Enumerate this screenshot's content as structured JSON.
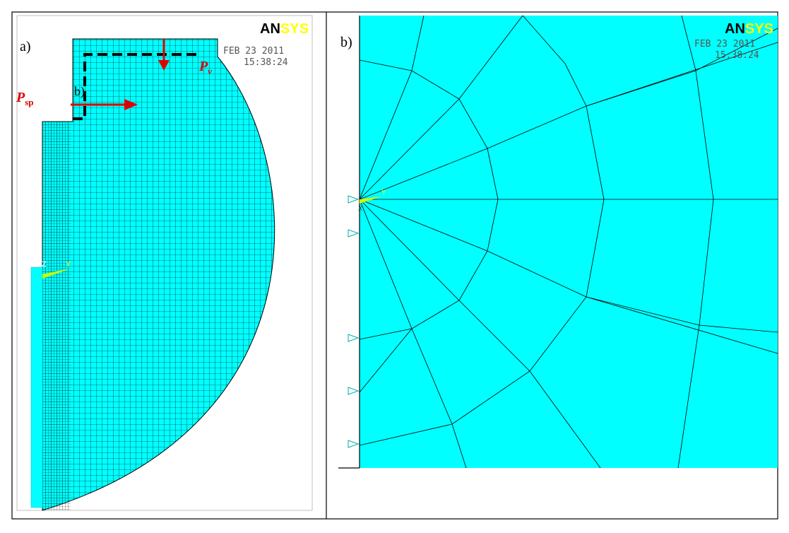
{
  "panel_a": {
    "label": "a)",
    "logo": {
      "an": "AN",
      "sys": "SYS"
    },
    "date": "FEB 23 2011",
    "time": "15:38:24",
    "loads": {
      "vertical": {
        "symbol": "P",
        "subscript": "v"
      },
      "horizontal": {
        "symbol": "P",
        "subscript": "sp"
      }
    },
    "detail_label": "b)",
    "axes": {
      "z": "Z",
      "y": "Y"
    }
  },
  "panel_b": {
    "label": "b)",
    "logo": {
      "an": "AN",
      "sys": "SYS"
    },
    "date": "FEB 23 2011",
    "time": "15:38:24",
    "axes": {
      "y": "Y",
      "x": "X"
    }
  }
}
